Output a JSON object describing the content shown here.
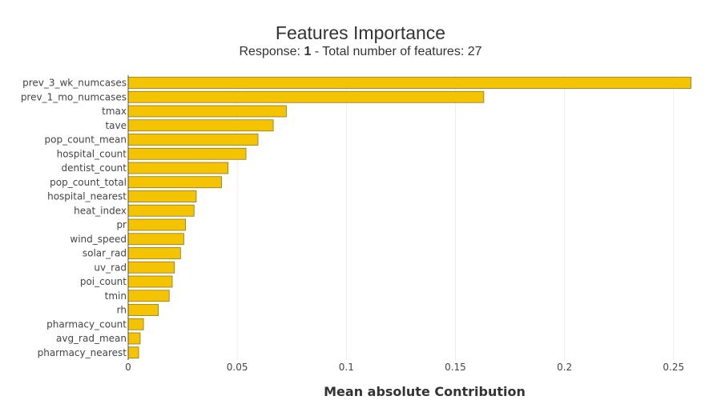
{
  "chart_data": {
    "type": "bar",
    "orientation": "horizontal",
    "title": "Features Importance",
    "subtitle": {
      "prefix": "Response: ",
      "response": "1",
      "suffix": " - Total number of features: 27"
    },
    "xlabel": "Mean absolute Contribution",
    "ylabel": "",
    "xlim": [
      0,
      0.26
    ],
    "xticks": [
      0,
      0.05,
      0.1,
      0.15,
      0.2,
      0.25
    ],
    "xtick_labels": [
      "0",
      "0.05",
      "0.1",
      "0.15",
      "0.2",
      "0.25"
    ],
    "grid": true,
    "legend": "none",
    "bar_color": "#f5c400",
    "bar_edge_color": "#8a7a1a",
    "categories": [
      "prev_3_wk_numcases",
      "prev_1_mo_numcases",
      "tmax",
      "tave",
      "pop_count_mean",
      "hospital_count",
      "dentist_count",
      "pop_count_total",
      "hospital_nearest",
      "heat_index",
      "pr",
      "wind_speed",
      "solar_rad",
      "uv_rad",
      "poi_count",
      "tmin",
      "rh",
      "pharmacy_count",
      "avg_rad_mean",
      "pharmacy_nearest"
    ],
    "values": [
      0.258,
      0.163,
      0.0725,
      0.0665,
      0.0595,
      0.054,
      0.0458,
      0.0428,
      0.0312,
      0.0302,
      0.0263,
      0.0255,
      0.024,
      0.0212,
      0.0202,
      0.0188,
      0.0138,
      0.007,
      0.0055,
      0.0048
    ]
  }
}
